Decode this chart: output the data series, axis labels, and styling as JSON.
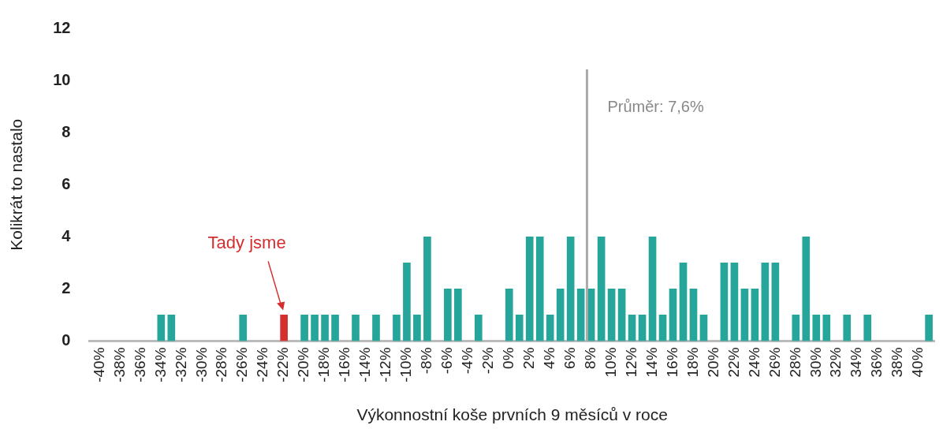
{
  "chart_data": {
    "type": "bar",
    "xlabel": "Výkonnostní koše prvních 9 měsíců v roce",
    "ylabel": "Kolikrát to nastalo",
    "x": [
      -34,
      -33,
      -26,
      -22,
      -20,
      -19,
      -18,
      -17,
      -15,
      -13,
      -11,
      -10,
      -9,
      -8,
      -6,
      -5,
      -3,
      0,
      1,
      2,
      3,
      4,
      5,
      6,
      7,
      8,
      9,
      10,
      11,
      12,
      13,
      14,
      15,
      16,
      17,
      18,
      19,
      21,
      22,
      23,
      24,
      25,
      26,
      28,
      29,
      30,
      31,
      33,
      35,
      41
    ],
    "values": [
      1,
      1,
      1,
      1,
      1,
      1,
      1,
      1,
      1,
      1,
      1,
      3,
      1,
      4,
      2,
      2,
      1,
      2,
      1,
      4,
      4,
      1,
      2,
      4,
      2,
      2,
      4,
      2,
      2,
      1,
      1,
      4,
      1,
      2,
      3,
      2,
      1,
      3,
      3,
      2,
      2,
      3,
      3,
      1,
      4,
      1,
      1,
      1,
      1,
      1
    ],
    "colors": [
      "#26a69a",
      "#26a69a",
      "#26a69a",
      "#d32f2f",
      "#26a69a",
      "#26a69a",
      "#26a69a",
      "#26a69a",
      "#26a69a",
      "#26a69a",
      "#26a69a",
      "#26a69a",
      "#26a69a",
      "#26a69a",
      "#26a69a",
      "#26a69a",
      "#26a69a",
      "#26a69a",
      "#26a69a",
      "#26a69a",
      "#26a69a",
      "#26a69a",
      "#26a69a",
      "#26a69a",
      "#26a69a",
      "#26a69a",
      "#26a69a",
      "#26a69a",
      "#26a69a",
      "#26a69a",
      "#26a69a",
      "#26a69a",
      "#26a69a",
      "#26a69a",
      "#26a69a",
      "#26a69a",
      "#26a69a",
      "#26a69a",
      "#26a69a",
      "#26a69a",
      "#26a69a",
      "#26a69a",
      "#26a69a",
      "#26a69a",
      "#26a69a",
      "#26a69a",
      "#26a69a",
      "#26a69a",
      "#26a69a",
      "#26a69a"
    ],
    "xlim": [
      -41,
      41.6
    ],
    "xticks": [
      {
        "value": -40,
        "label": "-40%"
      },
      {
        "value": -38,
        "label": "-38%"
      },
      {
        "value": -36,
        "label": "-36%"
      },
      {
        "value": -34,
        "label": "-34%"
      },
      {
        "value": -32,
        "label": "-32%"
      },
      {
        "value": -30,
        "label": "-30%"
      },
      {
        "value": -28,
        "label": "-28%"
      },
      {
        "value": -26,
        "label": "-26%"
      },
      {
        "value": -24,
        "label": "-24%"
      },
      {
        "value": -22,
        "label": "-22%"
      },
      {
        "value": -20,
        "label": "-20%"
      },
      {
        "value": -18,
        "label": "-18%"
      },
      {
        "value": -16,
        "label": "-16%"
      },
      {
        "value": -14,
        "label": "-14%"
      },
      {
        "value": -12,
        "label": "-12%"
      },
      {
        "value": -10,
        "label": "-10%"
      },
      {
        "value": -8,
        "label": "-8%"
      },
      {
        "value": -6,
        "label": "-6%"
      },
      {
        "value": -4,
        "label": "-4%"
      },
      {
        "value": -2,
        "label": "-2%"
      },
      {
        "value": 0,
        "label": "0%"
      },
      {
        "value": 2,
        "label": "2%"
      },
      {
        "value": 4,
        "label": "4%"
      },
      {
        "value": 6,
        "label": "6%"
      },
      {
        "value": 8,
        "label": "8%"
      },
      {
        "value": 10,
        "label": "10%"
      },
      {
        "value": 12,
        "label": "12%"
      },
      {
        "value": 14,
        "label": "14%"
      },
      {
        "value": 16,
        "label": "16%"
      },
      {
        "value": 18,
        "label": "18%"
      },
      {
        "value": 20,
        "label": "20%"
      },
      {
        "value": 22,
        "label": "22%"
      },
      {
        "value": 24,
        "label": "24%"
      },
      {
        "value": 26,
        "label": "26%"
      },
      {
        "value": 28,
        "label": "28%"
      },
      {
        "value": 30,
        "label": "30%"
      },
      {
        "value": 32,
        "label": "32%"
      },
      {
        "value": 34,
        "label": "34%"
      },
      {
        "value": 36,
        "label": "36%"
      },
      {
        "value": 38,
        "label": "38%"
      },
      {
        "value": 40,
        "label": "40%"
      }
    ],
    "ylim": [
      0,
      12
    ],
    "yticks": [
      0,
      2,
      4,
      6,
      8,
      10,
      12
    ],
    "grid": false,
    "legend": false,
    "ref_lines": [
      {
        "axis": "x",
        "value": 7.6,
        "label": "Průměr: 7,6%",
        "color": "#aaaaaa"
      }
    ],
    "annotations": [
      {
        "text": "Tady jsme",
        "x": -22,
        "y": 1
      }
    ]
  }
}
